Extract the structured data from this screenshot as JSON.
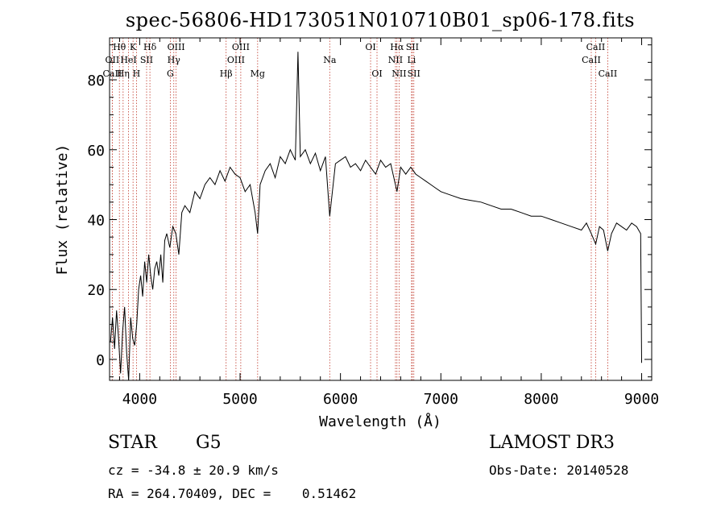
{
  "chart_data": {
    "type": "line",
    "title": "spec-56806-HD173051N010710B01_sp06-178.fits",
    "xlabel": "Wavelength (Å)",
    "ylabel": "Flux (relative)",
    "xlim": [
      3700,
      9100
    ],
    "ylim": [
      -6,
      92
    ],
    "xticks": [
      4000,
      5000,
      6000,
      7000,
      8000,
      9000
    ],
    "xtick_labels": [
      "4000",
      "5000",
      "6000",
      "7000",
      "8000",
      "9000"
    ],
    "yticks": [
      0,
      20,
      40,
      60,
      80
    ],
    "ytick_labels": [
      "0",
      "20",
      "40",
      "60",
      "80"
    ],
    "grid": false,
    "series": [
      {
        "name": "spectrum",
        "x": [
          3710,
          3730,
          3750,
          3770,
          3790,
          3810,
          3830,
          3850,
          3870,
          3890,
          3910,
          3930,
          3950,
          3970,
          3990,
          4010,
          4030,
          4050,
          4070,
          4090,
          4110,
          4130,
          4150,
          4170,
          4190,
          4210,
          4230,
          4250,
          4270,
          4300,
          4330,
          4360,
          4390,
          4420,
          4450,
          4500,
          4550,
          4600,
          4650,
          4700,
          4750,
          4800,
          4850,
          4900,
          4950,
          5000,
          5050,
          5100,
          5150,
          5175,
          5200,
          5250,
          5300,
          5350,
          5400,
          5450,
          5500,
          5550,
          5577,
          5600,
          5650,
          5700,
          5750,
          5800,
          5850,
          5893,
          5950,
          6000,
          6050,
          6100,
          6150,
          6200,
          6250,
          6300,
          6350,
          6400,
          6450,
          6500,
          6563,
          6600,
          6650,
          6700,
          6750,
          6800,
          6850,
          6900,
          6950,
          7000,
          7100,
          7200,
          7300,
          7400,
          7500,
          7600,
          7700,
          7800,
          7900,
          8000,
          8100,
          8200,
          8300,
          8400,
          8450,
          8498,
          8542,
          8580,
          8620,
          8662,
          8700,
          8750,
          8800,
          8850,
          8900,
          8950,
          8990,
          9000
        ],
        "y": [
          5,
          12,
          3,
          14,
          6,
          -4,
          8,
          15,
          2,
          -6,
          12,
          6,
          4,
          10,
          20,
          24,
          18,
          28,
          22,
          30,
          24,
          20,
          26,
          28,
          24,
          30,
          22,
          34,
          36,
          32,
          38,
          36,
          30,
          42,
          44,
          42,
          48,
          46,
          50,
          52,
          50,
          54,
          51,
          55,
          53,
          52,
          48,
          50,
          42,
          36,
          50,
          54,
          56,
          52,
          58,
          56,
          60,
          57,
          88,
          58,
          60,
          56,
          59,
          54,
          58,
          41,
          56,
          57,
          58,
          55,
          56,
          54,
          57,
          55,
          53,
          57,
          55,
          56,
          48,
          55,
          53,
          55,
          53,
          52,
          51,
          50,
          49,
          48,
          47,
          46,
          45.5,
          45,
          44,
          43,
          43,
          42,
          41,
          41,
          40,
          39,
          38,
          37,
          39,
          36,
          33,
          38,
          37,
          31,
          36,
          39,
          38,
          37,
          39,
          38,
          36,
          -1
        ]
      }
    ],
    "line_markers": [
      {
        "name": "Hθ",
        "wl": 3798,
        "row": 0
      },
      {
        "name": "OII",
        "wl": 3727,
        "row": 1
      },
      {
        "name": "CaII",
        "wl": 3727,
        "row": 2
      },
      {
        "name": "K",
        "wl": 3934,
        "row": 0
      },
      {
        "name": "HeI",
        "wl": 3889,
        "row": 1
      },
      {
        "name": "Hη",
        "wl": 3835,
        "row": 2
      },
      {
        "name": "H",
        "wl": 3968,
        "row": 2
      },
      {
        "name": "SII",
        "wl": 4069,
        "row": 1
      },
      {
        "name": "Hδ",
        "wl": 4102,
        "row": 0
      },
      {
        "name": "OIII",
        "wl": 4363,
        "row": 0
      },
      {
        "name": "Hγ",
        "wl": 4340,
        "row": 1
      },
      {
        "name": "G",
        "wl": 4305,
        "row": 2
      },
      {
        "name": "Hβ",
        "wl": 4861,
        "row": 2
      },
      {
        "name": "OIII",
        "wl": 5007,
        "row": 0
      },
      {
        "name": "OIII",
        "wl": 4959,
        "row": 1
      },
      {
        "name": "Mg",
        "wl": 5175,
        "row": 2
      },
      {
        "name": "Na",
        "wl": 5893,
        "row": 1
      },
      {
        "name": "OI",
        "wl": 6300,
        "row": 0
      },
      {
        "name": "OI",
        "wl": 6364,
        "row": 2
      },
      {
        "name": "Hα",
        "wl": 6563,
        "row": 0
      },
      {
        "name": "NII",
        "wl": 6548,
        "row": 1
      },
      {
        "name": "NII",
        "wl": 6584,
        "row": 2
      },
      {
        "name": "SII",
        "wl": 6716,
        "row": 0
      },
      {
        "name": "Li",
        "wl": 6708,
        "row": 1
      },
      {
        "name": "SII",
        "wl": 6731,
        "row": 2
      },
      {
        "name": "CaII",
        "wl": 8542,
        "row": 0
      },
      {
        "name": "CaII",
        "wl": 8498,
        "row": 1
      },
      {
        "name": "CaII",
        "wl": 8662,
        "row": 2
      }
    ],
    "colors": {
      "spectrum": "#000000",
      "marker": "#c0392b"
    }
  },
  "info": {
    "class": "STAR",
    "subclass": "G5",
    "redshift": "cz = -34.8 ± 20.9 km/s",
    "coords": "RA = 264.70409, DEC =    0.51462",
    "survey": "LAMOST DR3",
    "obsdate": "Obs-Date: 20140528"
  }
}
